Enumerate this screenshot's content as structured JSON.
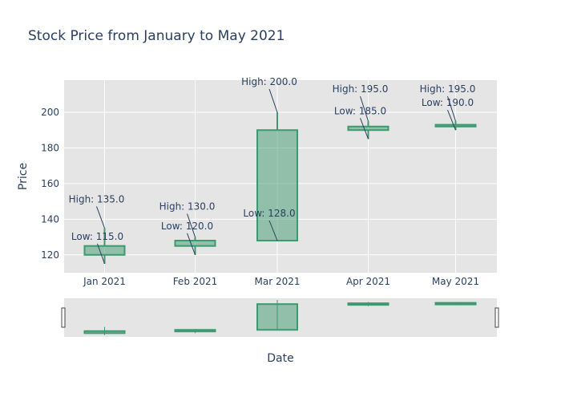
{
  "chart_data": {
    "type": "candlestick",
    "title": "Stock Price from January to May 2021",
    "xlabel": "Date",
    "ylabel": "Price",
    "ylim": [
      110,
      218
    ],
    "y_ticks": [
      120,
      140,
      160,
      180,
      200
    ],
    "categories": [
      "Jan 2021",
      "Feb 2021",
      "Mar 2021",
      "Apr 2021",
      "May 2021"
    ],
    "open": [
      120,
      125,
      128,
      190,
      192
    ],
    "high": [
      135,
      130,
      200,
      195,
      195
    ],
    "low": [
      115,
      120,
      128,
      185,
      190
    ],
    "close": [
      125,
      128,
      190,
      192,
      193
    ],
    "annotations": [
      {
        "x": "Jan 2021",
        "y": 135,
        "text": "High: 135.0"
      },
      {
        "x": "Jan 2021",
        "y": 115,
        "text": "Low: 115.0"
      },
      {
        "x": "Feb 2021",
        "y": 130,
        "text": "High: 130.0"
      },
      {
        "x": "Feb 2021",
        "y": 120,
        "text": "Low: 120.0"
      },
      {
        "x": "Mar 2021",
        "y": 200,
        "text": "High: 200.0"
      },
      {
        "x": "Mar 2021",
        "y": 128,
        "text": "Low: 128.0"
      },
      {
        "x": "Apr 2021",
        "y": 195,
        "text": "High: 195.0"
      },
      {
        "x": "Apr 2021",
        "y": 185,
        "text": "Low: 185.0"
      },
      {
        "x": "May 2021",
        "y": 195,
        "text": "High: 195.0"
      },
      {
        "x": "May 2021",
        "y": 190,
        "text": "Low: 190.0"
      }
    ],
    "increasing_color": "#3d9970",
    "plot_background": "#e5e5e5",
    "grid": true,
    "range_slider": true
  }
}
